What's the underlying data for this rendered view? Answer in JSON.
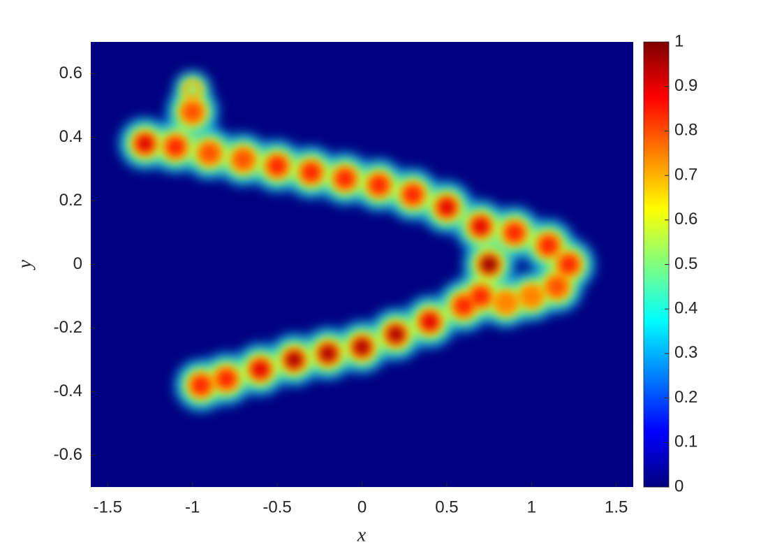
{
  "chart_data": {
    "type": "contourf",
    "x_label": "x",
    "y_label": "y",
    "xlim": [
      -1.6,
      1.6
    ],
    "ylim": [
      -0.7,
      0.7
    ],
    "xticks": [
      -1.5,
      -1,
      -0.5,
      0,
      0.5,
      1,
      1.5
    ],
    "yticks": [
      -0.6,
      -0.4,
      -0.2,
      0,
      0.2,
      0.4,
      0.6
    ],
    "colormap": "jet",
    "clim": [
      0,
      1
    ],
    "colorbar_ticks": [
      0,
      0.1,
      0.2,
      0.3,
      0.4,
      0.5,
      0.6,
      0.7,
      0.8,
      0.9,
      1
    ],
    "x": [
      -1.28,
      -1.1,
      -0.9,
      -0.7,
      -0.5,
      -0.3,
      -0.1,
      0.1,
      0.3,
      0.5,
      0.7,
      0.9,
      1.1,
      1.22,
      1.15,
      1.0,
      0.75,
      0.7,
      0.85,
      0.6,
      0.4,
      0.2,
      0.0,
      -0.2,
      -0.4,
      -0.6,
      -0.8,
      -0.95,
      -1.0,
      -1.0
    ],
    "y": [
      0.38,
      0.37,
      0.35,
      0.33,
      0.31,
      0.29,
      0.27,
      0.25,
      0.22,
      0.18,
      0.12,
      0.1,
      0.06,
      0.0,
      -0.07,
      -0.1,
      0.0,
      -0.1,
      -0.12,
      -0.13,
      -0.18,
      -0.22,
      -0.26,
      -0.28,
      -0.3,
      -0.33,
      -0.36,
      -0.38,
      0.48,
      0.55
    ],
    "values": [
      0.9,
      0.85,
      0.8,
      0.8,
      0.85,
      0.85,
      0.85,
      0.85,
      0.85,
      0.9,
      0.9,
      0.85,
      0.85,
      0.85,
      0.8,
      0.75,
      0.97,
      0.85,
      0.75,
      0.85,
      0.9,
      0.95,
      0.95,
      0.95,
      0.95,
      0.9,
      0.85,
      0.85,
      0.8,
      0.5
    ]
  }
}
